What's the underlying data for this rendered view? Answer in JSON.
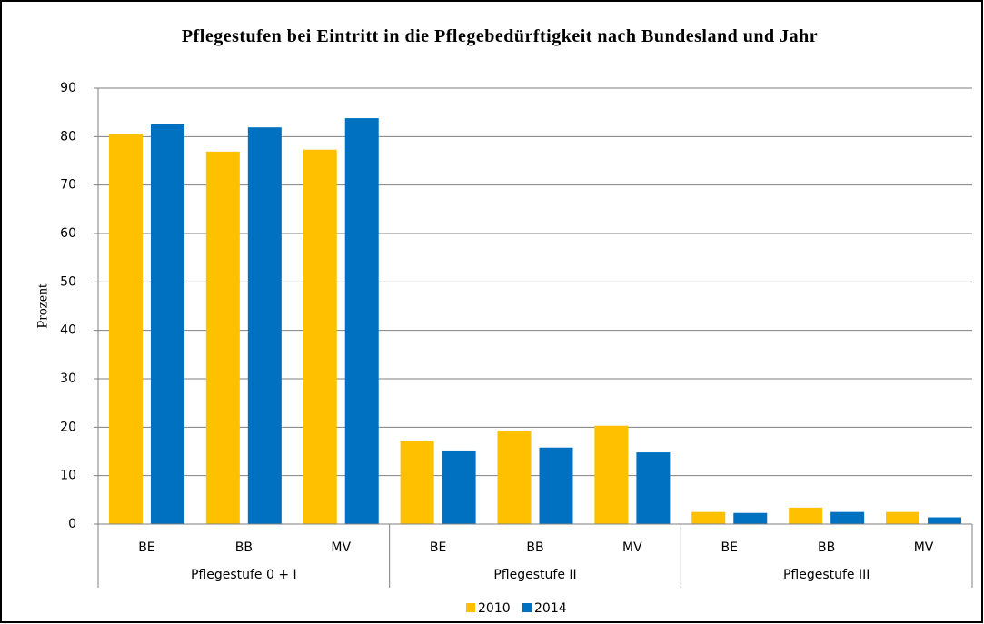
{
  "chart_data": {
    "type": "bar",
    "title": "Pflegestufen bei Eintritt in die Pflegebedürftigkeit nach Bundesland und Jahr",
    "y_label": "Prozent",
    "categories": [
      "BE",
      "BB",
      "MV",
      "BE",
      "BB",
      "MV",
      "BE",
      "BB",
      "MV"
    ],
    "category_groups": [
      "Pflegestufe 0 + I",
      "Pflegestufe II",
      "Pflegestufe III"
    ],
    "series": [
      {
        "name": "2010",
        "color": "#FFC000",
        "values": [
          80.5,
          76.9,
          77.3,
          17.1,
          19.3,
          20.3,
          2.5,
          3.4,
          2.5
        ]
      },
      {
        "name": "2014",
        "color": "#0070C0",
        "values": [
          82.5,
          81.9,
          83.8,
          15.2,
          15.8,
          14.8,
          2.3,
          2.5,
          1.4
        ]
      }
    ],
    "ylim": [
      0,
      90
    ],
    "yticks": [
      0,
      10,
      20,
      30,
      40,
      50,
      60,
      70,
      80,
      90
    ],
    "grid": true,
    "legend": "bottom"
  }
}
